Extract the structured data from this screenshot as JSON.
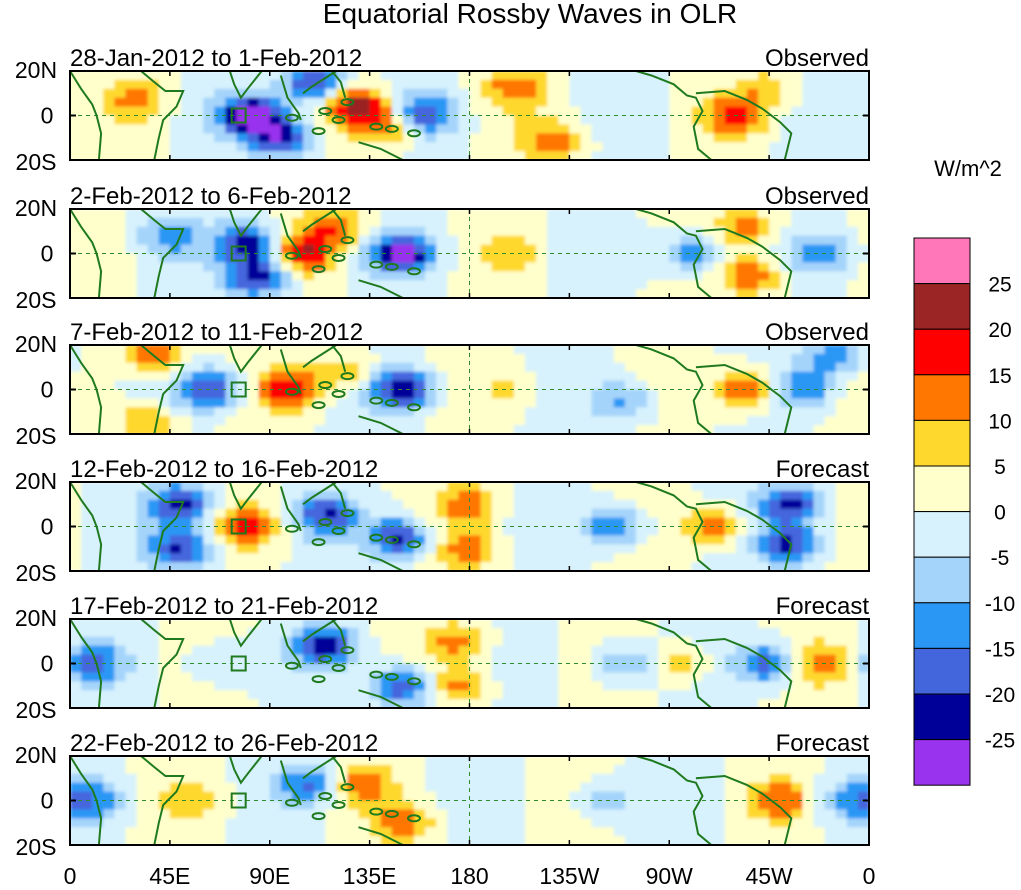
{
  "chart_data": {
    "type": "heatmap",
    "title": "Equatorial Rossby Waves in OLR",
    "units_label": "W/m^2",
    "lat_ticks": [
      "20N",
      "0",
      "20S"
    ],
    "lon_ticks": [
      "0",
      "45E",
      "90E",
      "135E",
      "180",
      "135W",
      "90W",
      "45W",
      "0"
    ],
    "lon_range": [
      0,
      360
    ],
    "lat_range": [
      -20,
      20
    ],
    "colorbar": {
      "labels": [
        "25",
        "20",
        "15",
        "10",
        "5",
        "0",
        "-5",
        "-10",
        "-15",
        "-20",
        "-25"
      ],
      "colors": [
        "#ff77b9",
        "#9b2424",
        "#ff0000",
        "#ff7700",
        "#ffd82e",
        "#ffffcc",
        "#d7f2fd",
        "#a5d4fb",
        "#2a97f5",
        "#4466dd",
        "#000099",
        "#9933ee"
      ]
    },
    "panels": [
      {
        "period": "28-Jan-2012 to 1-Feb-2012",
        "status": "Observed",
        "anomalies": [
          {
            "lon": 30,
            "lat": 8,
            "v": 10
          },
          {
            "lon": 82,
            "lat": 0,
            "v": -28
          },
          {
            "lon": 95,
            "lat": -10,
            "v": -22
          },
          {
            "lon": 110,
            "lat": 15,
            "v": -22
          },
          {
            "lon": 130,
            "lat": 4,
            "v": 22
          },
          {
            "lon": 145,
            "lat": -5,
            "v": 15
          },
          {
            "lon": 158,
            "lat": 0,
            "v": -20
          },
          {
            "lon": 200,
            "lat": 13,
            "v": 12
          },
          {
            "lon": 218,
            "lat": -12,
            "v": 12
          },
          {
            "lon": 300,
            "lat": 0,
            "v": 15
          },
          {
            "lon": 315,
            "lat": 12,
            "v": 8
          }
        ]
      },
      {
        "period": "2-Feb-2012 to 6-Feb-2012",
        "status": "Observed",
        "anomalies": [
          {
            "lon": 45,
            "lat": 8,
            "v": -12
          },
          {
            "lon": 80,
            "lat": 5,
            "v": -22
          },
          {
            "lon": 85,
            "lat": -10,
            "v": -25
          },
          {
            "lon": 105,
            "lat": 0,
            "v": 18
          },
          {
            "lon": 120,
            "lat": 12,
            "v": 14
          },
          {
            "lon": 150,
            "lat": 0,
            "v": -25
          },
          {
            "lon": 200,
            "lat": 0,
            "v": 6
          },
          {
            "lon": 280,
            "lat": 0,
            "v": -15
          },
          {
            "lon": 307,
            "lat": -10,
            "v": 15
          },
          {
            "lon": 305,
            "lat": 12,
            "v": 12
          },
          {
            "lon": 340,
            "lat": 0,
            "v": -12
          }
        ]
      },
      {
        "period": "7-Feb-2012 to 11-Feb-2012",
        "status": "Observed",
        "anomalies": [
          {
            "lon": 38,
            "lat": 15,
            "v": 15
          },
          {
            "lon": 35,
            "lat": -15,
            "v": 12
          },
          {
            "lon": 62,
            "lat": 0,
            "v": -20
          },
          {
            "lon": 100,
            "lat": 0,
            "v": 18
          },
          {
            "lon": 125,
            "lat": 8,
            "v": 10
          },
          {
            "lon": 150,
            "lat": 0,
            "v": -25
          },
          {
            "lon": 200,
            "lat": 0,
            "v": 5
          },
          {
            "lon": 250,
            "lat": -5,
            "v": -12
          },
          {
            "lon": 305,
            "lat": 0,
            "v": 18
          },
          {
            "lon": 330,
            "lat": 0,
            "v": -15
          },
          {
            "lon": 345,
            "lat": 15,
            "v": -15
          }
        ]
      },
      {
        "period": "12-Feb-2012 to 16-Feb-2012",
        "status": "Forecast",
        "anomalies": [
          {
            "lon": 50,
            "lat": 10,
            "v": -22
          },
          {
            "lon": 50,
            "lat": -10,
            "v": -20
          },
          {
            "lon": 80,
            "lat": 0,
            "v": 14
          },
          {
            "lon": 115,
            "lat": 5,
            "v": -18
          },
          {
            "lon": 148,
            "lat": -5,
            "v": -22
          },
          {
            "lon": 180,
            "lat": 10,
            "v": 12
          },
          {
            "lon": 180,
            "lat": -10,
            "v": 12
          },
          {
            "lon": 245,
            "lat": 0,
            "v": -18
          },
          {
            "lon": 290,
            "lat": 0,
            "v": 15
          },
          {
            "lon": 325,
            "lat": -8,
            "v": -22
          },
          {
            "lon": 325,
            "lat": 10,
            "v": -22
          }
        ]
      },
      {
        "period": "17-Feb-2012 to 21-Feb-2012",
        "status": "Forecast",
        "anomalies": [
          {
            "lon": 10,
            "lat": 0,
            "v": -15
          },
          {
            "lon": 65,
            "lat": 0,
            "v": -8
          },
          {
            "lon": 115,
            "lat": 8,
            "v": -20
          },
          {
            "lon": 150,
            "lat": -10,
            "v": -22
          },
          {
            "lon": 175,
            "lat": 10,
            "v": 12
          },
          {
            "lon": 175,
            "lat": -10,
            "v": 12
          },
          {
            "lon": 250,
            "lat": 0,
            "v": -12
          },
          {
            "lon": 275,
            "lat": 0,
            "v": 10
          },
          {
            "lon": 315,
            "lat": 0,
            "v": -18
          },
          {
            "lon": 340,
            "lat": 0,
            "v": 12
          }
        ]
      },
      {
        "period": "22-Feb-2012 to 26-Feb-2012",
        "status": "Forecast",
        "anomalies": [
          {
            "lon": 10,
            "lat": 0,
            "v": -12
          },
          {
            "lon": 55,
            "lat": 0,
            "v": 5
          },
          {
            "lon": 108,
            "lat": 8,
            "v": -15
          },
          {
            "lon": 130,
            "lat": 8,
            "v": 12
          },
          {
            "lon": 150,
            "lat": -10,
            "v": 12
          },
          {
            "lon": 240,
            "lat": 0,
            "v": -10
          },
          {
            "lon": 320,
            "lat": 0,
            "v": 12
          },
          {
            "lon": 350,
            "lat": 0,
            "v": -10
          }
        ]
      }
    ]
  }
}
